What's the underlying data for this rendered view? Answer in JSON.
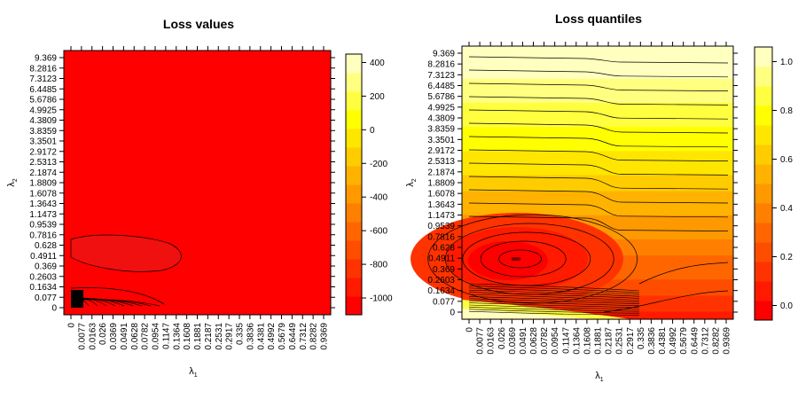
{
  "chart_data": [
    {
      "type": "heatmap",
      "title": "Loss values",
      "xlabel_symbol": "λ",
      "xlabel_sub": "1",
      "ylabel_symbol": "λ",
      "ylabel_sub": "2",
      "x_ticks": [
        "0",
        "0.0077",
        "0.0163",
        "0.026",
        "0.0369",
        "0.0491",
        "0.0628",
        "0.0782",
        "0.0954",
        "0.1147",
        "0.1364",
        "0.1608",
        "0.1881",
        "0.2187",
        "0.2531",
        "0.2917",
        "0.335",
        "0.3836",
        "0.4381",
        "0.4992",
        "0.5679",
        "0.6449",
        "0.7312",
        "0.8282",
        "0.9369"
      ],
      "y_ticks": [
        "0",
        "0.077",
        "0.1634",
        "0.2603",
        "0.369",
        "0.4911",
        "0.628",
        "0.7816",
        "0.9539",
        "1.1473",
        "1.3643",
        "1.6078",
        "1.8809",
        "2.1874",
        "2.5313",
        "2.9172",
        "3.3501",
        "3.8359",
        "4.3809",
        "4.9925",
        "5.6786",
        "6.4485",
        "7.3123",
        "8.2816",
        "9.369"
      ],
      "colorbar_ticks": [
        "400",
        "200",
        "0",
        "-200",
        "-400",
        "-600",
        "-800",
        "-1000"
      ],
      "colorbar_range": [
        -1100,
        450
      ],
      "colors": [
        "#ff0000",
        "#ff1a00",
        "#ff3300",
        "#ff4d00",
        "#ff6600",
        "#ff8000",
        "#ff9900",
        "#ffb300",
        "#ffcc00",
        "#ffe600",
        "#ffff00",
        "#ffff40",
        "#ffff80",
        "#ffffbf"
      ],
      "background_level": 0,
      "regions": [
        {
          "kind": "ellipse",
          "cx": 0.045,
          "cy": 0.55,
          "rx": 0.05,
          "ry": 0.16,
          "level": 1
        },
        {
          "kind": "wedge",
          "level": 13,
          "note": "high loss near λ2=0, small λ1"
        }
      ]
    },
    {
      "type": "heatmap",
      "title": "Loss quantiles",
      "xlabel_symbol": "λ",
      "xlabel_sub": "1",
      "ylabel_symbol": "λ",
      "ylabel_sub": "2",
      "x_ticks": [
        "0",
        "0.0077",
        "0.0163",
        "0.026",
        "0.0369",
        "0.0491",
        "0.0628",
        "0.0782",
        "0.0954",
        "0.1147",
        "0.1364",
        "0.1608",
        "0.1881",
        "0.2187",
        "0.2531",
        "0.2917",
        "0.335",
        "0.3836",
        "0.4381",
        "0.4992",
        "0.5679",
        "0.6449",
        "0.7312",
        "0.8282",
        "0.9369"
      ],
      "y_ticks": [
        "0",
        "0.077",
        "0.1634",
        "0.2603",
        "0.369",
        "0.4911",
        "0.628",
        "0.7816",
        "0.9539",
        "1.1473",
        "1.3643",
        "1.6078",
        "1.8809",
        "2.1874",
        "2.5313",
        "2.9172",
        "3.3501",
        "3.8359",
        "4.3809",
        "4.9925",
        "5.6786",
        "6.4485",
        "7.3123",
        "8.2816",
        "9.369"
      ],
      "colorbar_ticks": [
        "1.0",
        "0.8",
        "0.6",
        "0.4",
        "0.2",
        "0.0"
      ],
      "colorbar_range": [
        -0.06,
        1.06
      ],
      "colors": [
        "#ff0000",
        "#ff1a00",
        "#ff3300",
        "#ff4d00",
        "#ff6600",
        "#ff8000",
        "#ff9900",
        "#ffb300",
        "#ffcc00",
        "#ffe600",
        "#ffff00",
        "#ffff40",
        "#ffff80",
        "#ffffbf"
      ],
      "minimum": {
        "lambda1": 0.0491,
        "lambda2": 0.4911
      }
    }
  ]
}
